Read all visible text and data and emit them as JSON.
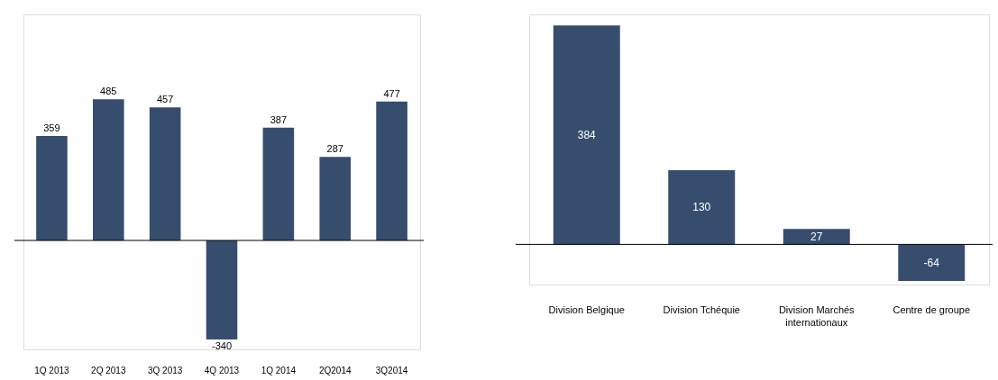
{
  "chart_data": [
    {
      "type": "bar",
      "categories": [
        "1Q 2013",
        "2Q 2013",
        "3Q 2013",
        "4Q 2013",
        "1Q 2014",
        "2Q2014",
        "3Q2014"
      ],
      "values": [
        359,
        485,
        457,
        -340,
        387,
        287,
        477
      ],
      "color": "#364d6e",
      "data_labels": true
    },
    {
      "type": "bar",
      "categories": [
        "Division Belgique",
        "Division Tchéquie",
        "Division Marchés internationaux",
        "Centre de groupe"
      ],
      "values": [
        384,
        130,
        27,
        -64
      ],
      "color": "#364d6e",
      "data_labels": true
    }
  ]
}
